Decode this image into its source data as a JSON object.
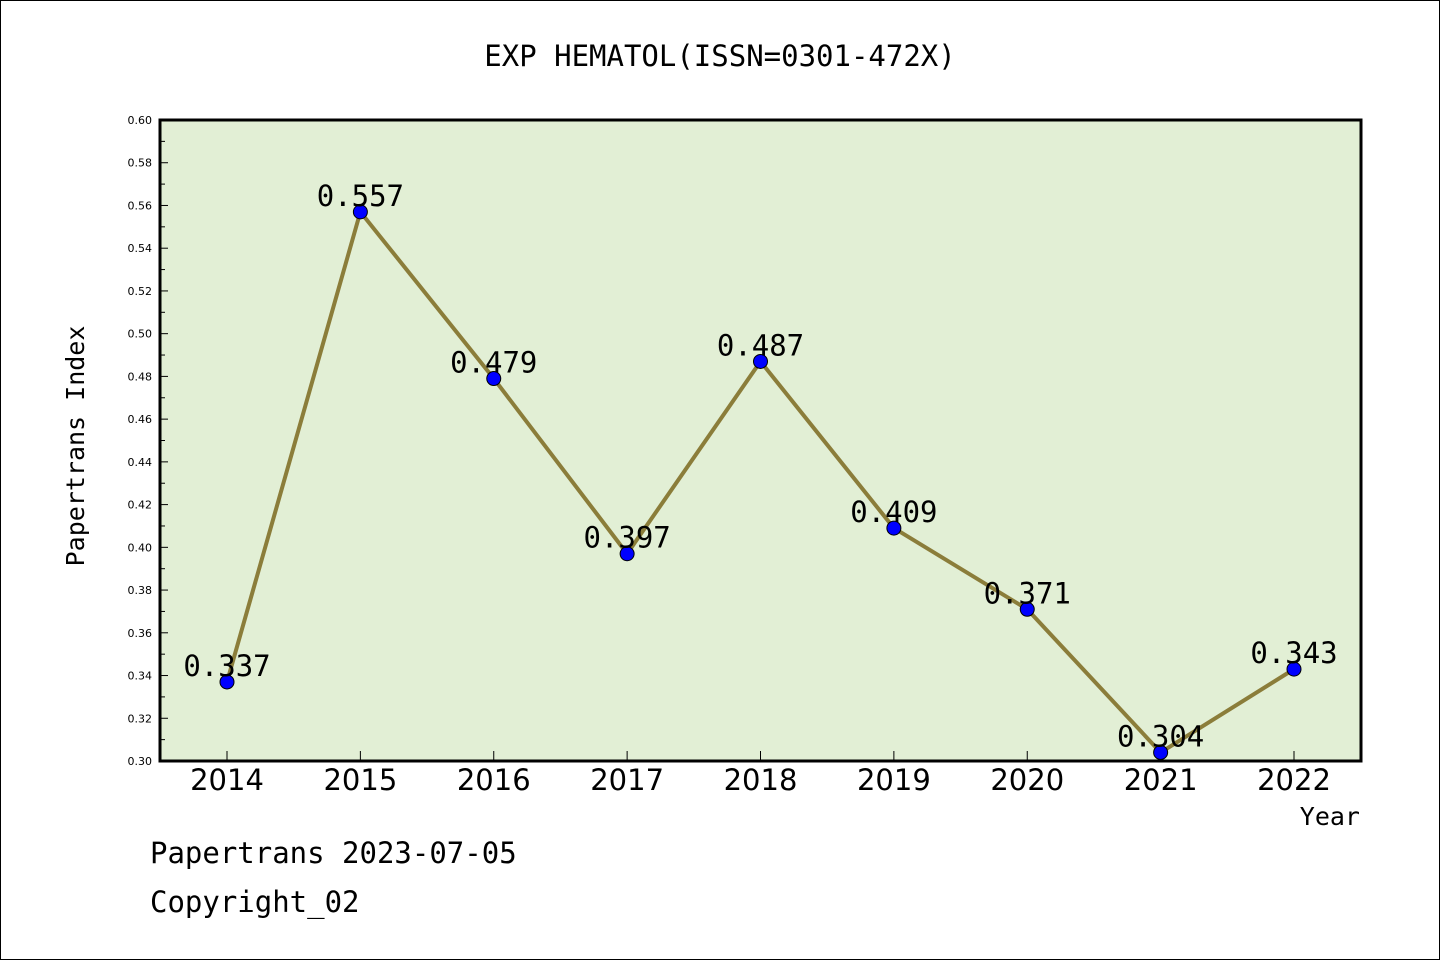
{
  "chart_data": {
    "type": "line",
    "title": "EXP HEMATOL(ISSN=0301-472X)",
    "xlabel": "Year",
    "ylabel": "Papertrans Index",
    "categories": [
      "2014",
      "2015",
      "2016",
      "2017",
      "2018",
      "2019",
      "2020",
      "2021",
      "2022"
    ],
    "values": [
      0.337,
      0.557,
      0.479,
      0.397,
      0.487,
      0.409,
      0.371,
      0.304,
      0.343
    ],
    "data_labels": [
      "0.337",
      "0.557",
      "0.479",
      "0.397",
      "0.487",
      "0.409",
      "0.371",
      "0.304",
      "0.343"
    ],
    "ylim": [
      0.3,
      0.6
    ],
    "yticks": [
      "0.30",
      "0.32",
      "0.34",
      "0.36",
      "0.38",
      "0.40",
      "0.42",
      "0.44",
      "0.46",
      "0.48",
      "0.50",
      "0.52",
      "0.54",
      "0.56",
      "0.58",
      "0.60"
    ],
    "grid": false,
    "legend": "none",
    "colors": {
      "plot_background": "#e2efd5",
      "line": "#8b7d3a",
      "marker": "#0000ff"
    }
  },
  "footer": {
    "line1": "Papertrans 2023-07-05",
    "line2": "Copyright_02"
  }
}
